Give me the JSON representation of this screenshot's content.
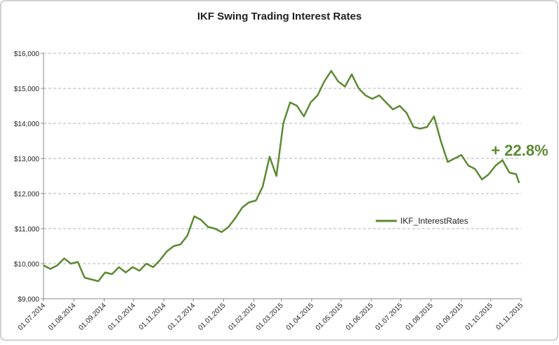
{
  "chart_data": {
    "type": "line",
    "title": "IKF Swing Trading Interest Rates",
    "annotation": "+ 22.8%",
    "legend": "right",
    "grid": true,
    "xlim": [
      "01.07.2014",
      "01.11.2015"
    ],
    "xticks": [
      "01.07.2014",
      "01.08.2014",
      "01.09.2014",
      "01.10.2014",
      "01.11.2014",
      "01.12.2014",
      "01.01.2015",
      "01.02.2015",
      "01.03.2015",
      "01.04.2015",
      "01.05.2015",
      "01.06.2015",
      "01.07.2015",
      "01.08.2015",
      "01.09.2015",
      "01.10.2015",
      "01.11.2015"
    ],
    "ylim": [
      9000,
      16000
    ],
    "yticks": [
      {
        "value": 9000,
        "label": "$9,000"
      },
      {
        "value": 10000,
        "label": "$10,000"
      },
      {
        "value": 11000,
        "label": "$11,000"
      },
      {
        "value": 12000,
        "label": "$12,000"
      },
      {
        "value": 13000,
        "label": "$13,000"
      },
      {
        "value": 14000,
        "label": "$14,000"
      },
      {
        "value": 15000,
        "label": "$15,000"
      },
      {
        "value": 16000,
        "label": "$16,000"
      }
    ],
    "x": [
      "01.07.2014",
      "08.07.2014",
      "15.07.2014",
      "22.07.2014",
      "29.07.2014",
      "05.08.2014",
      "12.08.2014",
      "19.08.2014",
      "26.08.2014",
      "02.09.2014",
      "09.09.2014",
      "16.09.2014",
      "23.09.2014",
      "30.09.2014",
      "07.10.2014",
      "14.10.2014",
      "21.10.2014",
      "28.10.2014",
      "04.11.2014",
      "11.11.2014",
      "18.11.2014",
      "25.11.2014",
      "02.12.2014",
      "09.12.2014",
      "16.12.2014",
      "23.12.2014",
      "30.12.2014",
      "06.01.2015",
      "13.01.2015",
      "20.01.2015",
      "27.01.2015",
      "03.02.2015",
      "10.02.2015",
      "17.02.2015",
      "24.02.2015",
      "03.03.2015",
      "10.03.2015",
      "17.03.2015",
      "24.03.2015",
      "31.03.2015",
      "07.04.2015",
      "14.04.2015",
      "21.04.2015",
      "28.04.2015",
      "05.05.2015",
      "12.05.2015",
      "19.05.2015",
      "26.05.2015",
      "02.06.2015",
      "09.06.2015",
      "16.06.2015",
      "23.06.2015",
      "30.06.2015",
      "07.07.2015",
      "14.07.2015",
      "21.07.2015",
      "28.07.2015",
      "04.08.2015",
      "11.08.2015",
      "18.08.2015",
      "25.08.2015",
      "01.09.2015",
      "08.09.2015",
      "15.09.2015",
      "22.09.2015",
      "29.09.2015",
      "06.10.2015",
      "13.10.2015",
      "20.10.2015",
      "27.10.2015",
      "30.10.2015"
    ],
    "series": [
      {
        "name": "IKF_InterestRates",
        "color": "#5b8a32",
        "values": [
          9950,
          9850,
          9950,
          10150,
          10000,
          10050,
          9600,
          9550,
          9500,
          9750,
          9700,
          9900,
          9750,
          9900,
          9800,
          10000,
          9900,
          10100,
          10350,
          10500,
          10550,
          10800,
          11350,
          11250,
          11050,
          11000,
          10900,
          11050,
          11300,
          11600,
          11750,
          11800,
          12200,
          13050,
          12500,
          14000,
          14600,
          14500,
          14200,
          14600,
          14800,
          15200,
          15500,
          15200,
          15050,
          15400,
          15000,
          14800,
          14700,
          14800,
          14600,
          14400,
          14500,
          14300,
          13900,
          13850,
          13900,
          14200,
          13500,
          12900,
          13000,
          13100,
          12800,
          12700,
          12400,
          12550,
          12800,
          12950,
          12600,
          12550,
          12300
        ]
      }
    ]
  }
}
